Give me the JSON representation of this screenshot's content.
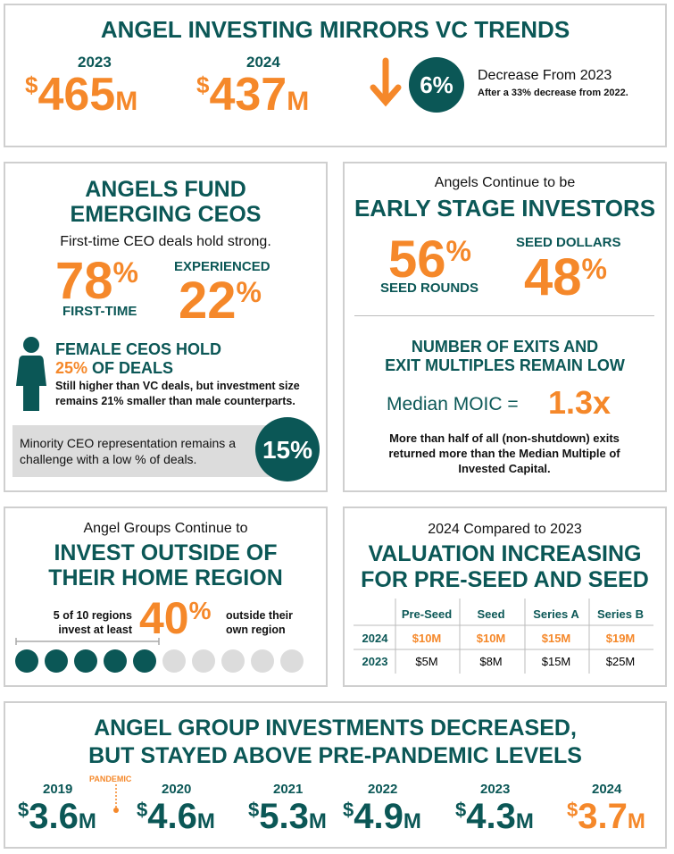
{
  "header": {
    "title": "ANGEL INVESTING MIRRORS VC TRENDS",
    "totals": [
      {
        "year": "2023",
        "currency": "$",
        "amount": "465",
        "unit": "M"
      },
      {
        "year": "2024",
        "currency": "$",
        "amount": "437",
        "unit": "M"
      }
    ],
    "change": {
      "percent": "6%",
      "label": "Decrease From 2023",
      "note": "After a 33% decrease from 2022."
    }
  },
  "ceos": {
    "title_line1": "ANGELS FUND",
    "title_line2": "EMERGING CEOS",
    "subtitle": "First-time CEO deals hold strong.",
    "first_time": {
      "percent": "78",
      "sign": "%",
      "label": "FIRST-TIME"
    },
    "experienced": {
      "percent": "22",
      "sign": "%",
      "label": "EXPERIENCED"
    },
    "female": {
      "heading": "FEMALE CEOS HOLD",
      "highlight": "25%",
      "highlight_rest": "OF DEALS",
      "text": "Still higher than VC deals, but investment size remains 21% smaller than male counterparts."
    },
    "minority": {
      "text": "Minority CEO representation remains a challenge with a low % of deals.",
      "percent": "15%"
    }
  },
  "stage": {
    "kicker": "Angels Continue to be",
    "title": "EARLY STAGE INVESTORS",
    "seed_rounds": {
      "percent": "56",
      "sign": "%",
      "label": "SEED ROUNDS"
    },
    "seed_dollars": {
      "percent": "48",
      "sign": "%",
      "label": "SEED DOLLARS"
    },
    "exits_title_line1": "NUMBER OF EXITS AND",
    "exits_title_line2": "EXIT MULTIPLES REMAIN LOW",
    "moic_label": "Median MOIC =",
    "moic_value": "1.3x",
    "exits_text": "More than half of all (non-shutdown) exits returned more than the Median Multiple of Invested Capital."
  },
  "region": {
    "kicker": "Angel Groups Continue to",
    "title_line1": "INVEST OUTSIDE OF",
    "title_line2": "THEIR HOME REGION",
    "left_text": "5 of 10 regions invest at least",
    "percent": "40",
    "sign": "%",
    "right_text": "outside their own region"
  },
  "valuation": {
    "kicker": "2024 Compared to 2023",
    "title_line1": "VALUATION INCREASING",
    "title_line2": "FOR PRE-SEED AND SEED",
    "columns": [
      "Pre-Seed",
      "Seed",
      "Series A",
      "Series B"
    ],
    "rows": [
      [
        "2024",
        "$10M",
        "$10M",
        "$15M",
        "$19M"
      ],
      [
        "2023",
        "$5M",
        "$8M",
        "$15M",
        "$25M"
      ]
    ]
  },
  "groups": {
    "title_line1": "ANGEL GROUP INVESTMENTS DECREASED,",
    "title_line2": "BUT STAYED ABOVE PRE-PANDEMIC LEVELS",
    "annotation": "PANDEMIC",
    "years": [
      {
        "year": "2019",
        "currency": "$",
        "amount": "3.6",
        "unit": "M"
      },
      {
        "year": "2020",
        "currency": "$",
        "amount": "4.6",
        "unit": "M"
      },
      {
        "year": "2021",
        "currency": "$",
        "amount": "5.3",
        "unit": "M"
      },
      {
        "year": "2022",
        "currency": "$",
        "amount": "4.9",
        "unit": "M"
      },
      {
        "year": "2023",
        "currency": "$",
        "amount": "4.3",
        "unit": "M"
      },
      {
        "year": "2024",
        "currency": "$",
        "amount": "3.7",
        "unit": "M"
      }
    ]
  }
}
